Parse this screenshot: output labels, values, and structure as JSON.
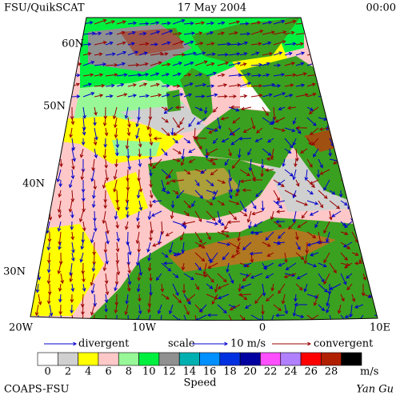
{
  "header": {
    "source": "FSU/QuikSCAT",
    "date": "17 May 2004",
    "time": "00:00"
  },
  "map": {
    "lat_labels": [
      "60N",
      "50N",
      "40N",
      "30N"
    ],
    "lon_labels": [
      "20W",
      "10W",
      "0",
      "10E"
    ]
  },
  "legend": {
    "divergent": "divergent",
    "scale": "scale",
    "scale_value": "10 m/s",
    "convergent": "convergent",
    "divergent_color": "#0000cc",
    "convergent_color": "#990000"
  },
  "colorbar": {
    "ticks": [
      "0",
      "2",
      "4",
      "6",
      "8",
      "10",
      "12",
      "14",
      "16",
      "18",
      "20",
      "22",
      "24",
      "26",
      "28"
    ],
    "unit": "m/s",
    "title": "Speed",
    "colors": [
      "#ffffff",
      "#d0d0d0",
      "#ffff00",
      "#ffc8c8",
      "#98f898",
      "#00f040",
      "#909090",
      "#00b0b0",
      "#0090ff",
      "#0030e0",
      "#0000a0",
      "#ff50ff",
      "#b080ff",
      "#ff0000",
      "#b02000",
      "#000000"
    ]
  },
  "footer": {
    "credit": "COAPS-FSU",
    "author": "Yan Gu"
  }
}
